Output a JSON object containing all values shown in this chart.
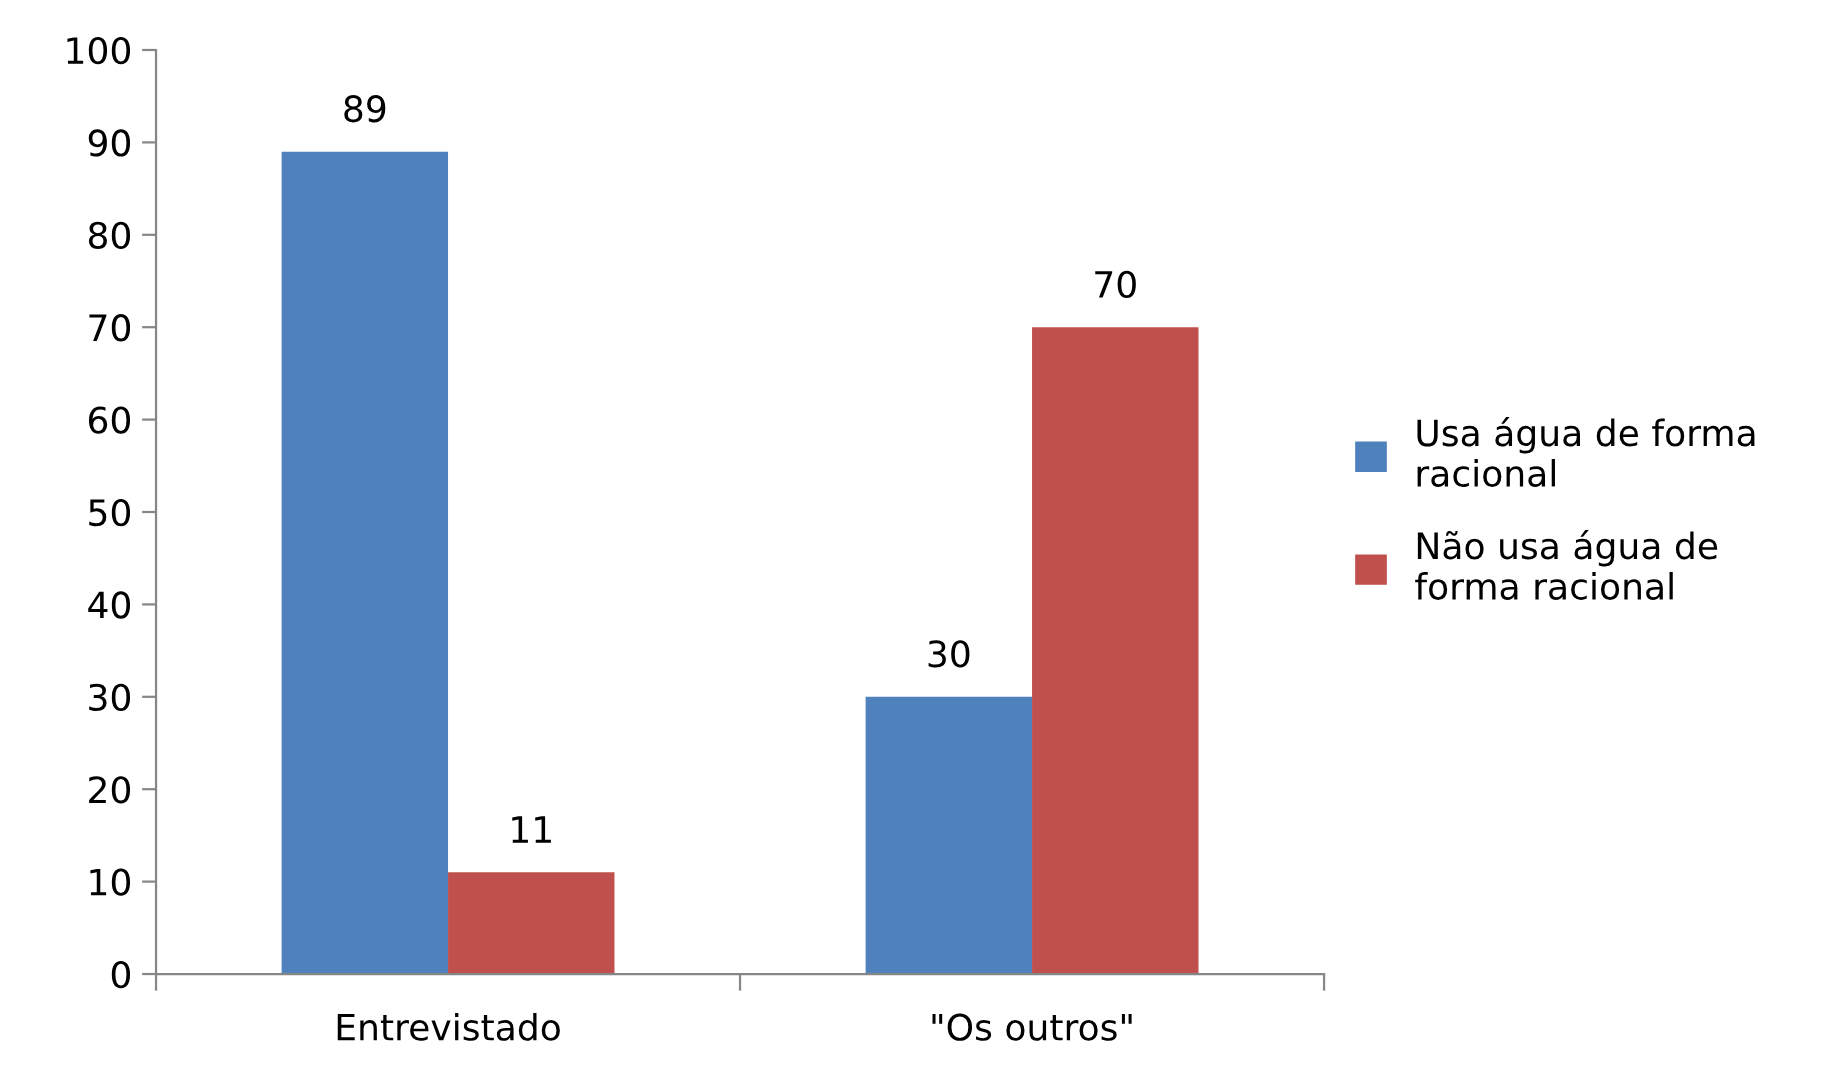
{
  "chart_data": {
    "type": "bar",
    "categories": [
      "Entrevistado",
      "\"Os outros\""
    ],
    "series": [
      {
        "name": "Usa água de forma racional",
        "color": "#4f81bd",
        "values": [
          89,
          30
        ]
      },
      {
        "name": "Não usa água de forma racional",
        "color": "#c0504d",
        "values": [
          11,
          70
        ]
      }
    ],
    "ylim": [
      0,
      100
    ],
    "yticks": [
      0,
      10,
      20,
      30,
      40,
      50,
      60,
      70,
      80,
      90,
      100
    ],
    "data_labels": true,
    "grid": false,
    "legend": "right"
  }
}
